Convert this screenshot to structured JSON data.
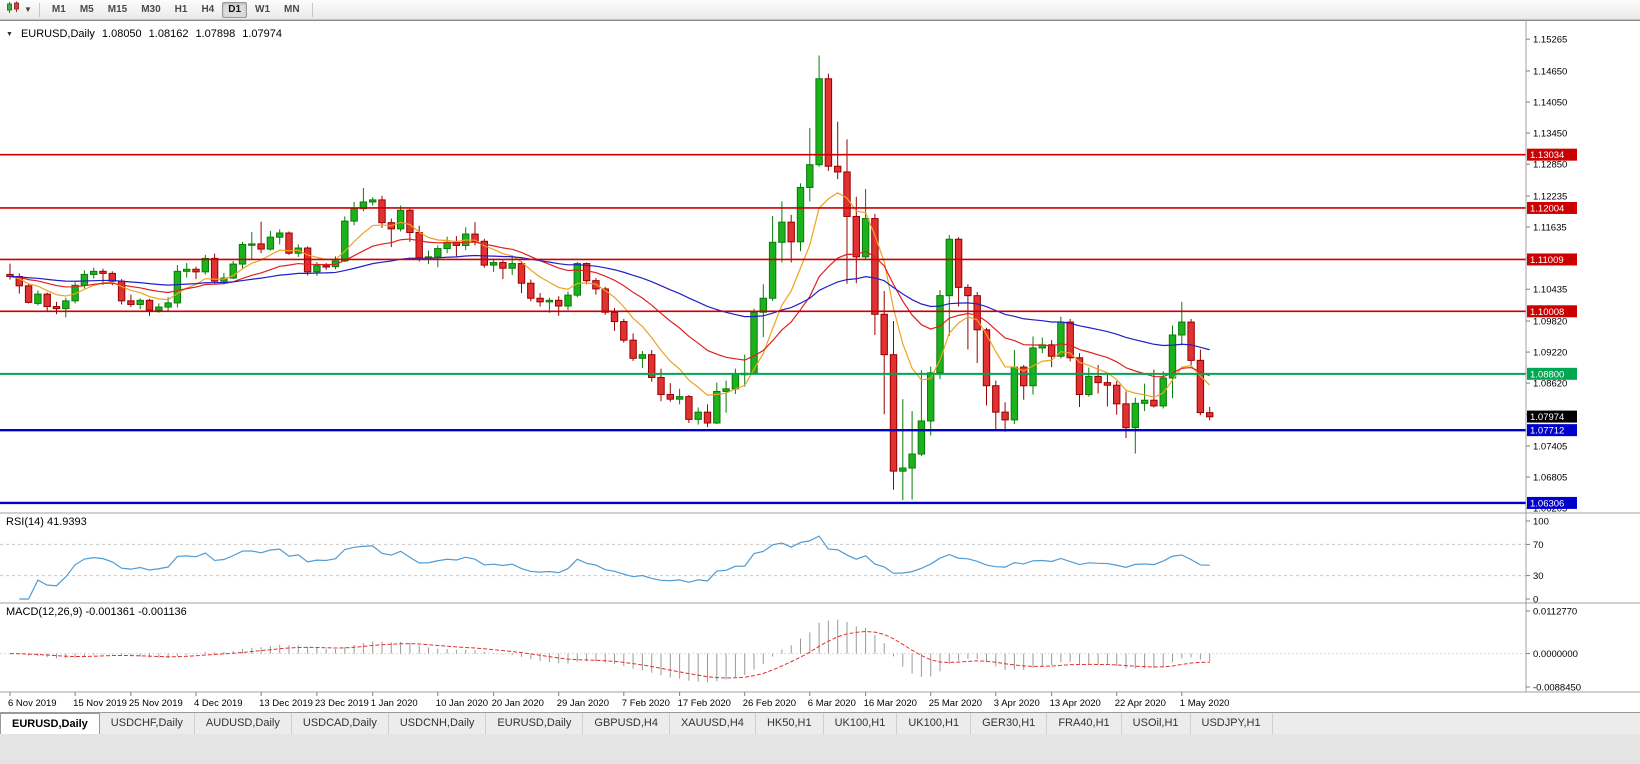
{
  "toolbar": {
    "timeframes": [
      "M1",
      "M5",
      "M15",
      "M30",
      "H1",
      "H4",
      "D1",
      "W1",
      "MN"
    ],
    "active_timeframe": "D1"
  },
  "chart": {
    "title": "EURUSD,Daily",
    "open": "1.08050",
    "high": "1.08162",
    "low": "1.07898",
    "close": "1.07974"
  },
  "rsi": {
    "label": "RSI(14) 41.9393",
    "ticks": [
      "100",
      "70",
      "30",
      "0"
    ],
    "levels": [
      70,
      30
    ],
    "color": "#4f9bd5"
  },
  "macd": {
    "label": "MACD(12,26,9) -0.001361 -0.001136",
    "ticks": [
      {
        "text": "0.0112770",
        "value": 0.011277
      },
      {
        "text": "0.0000000",
        "value": 0
      },
      {
        "text": "-0.0088450",
        "value": -0.008845
      }
    ],
    "histogram_color": "#9a9a9a",
    "signal_color": "#e03030",
    "scale": [
      -0.008845,
      0.011277
    ]
  },
  "price_axis": {
    "ticks": [
      "1.15265",
      "1.14650",
      "1.14050",
      "1.13450",
      "1.12850",
      "1.12235",
      "1.11635",
      "1.11035",
      "1.10435",
      "1.09820",
      "1.09220",
      "1.08620",
      "1.08020",
      "1.07405",
      "1.06805",
      "1.06205"
    ],
    "current_price": {
      "text": "1.07974",
      "value": 1.07974,
      "bg": "#000000",
      "fg": "#ffffff"
    }
  },
  "time_axis": {
    "labels": [
      {
        "text": "6 Nov 2019",
        "i": 0
      },
      {
        "text": "15 Nov 2019",
        "i": 7
      },
      {
        "text": "25 Nov 2019",
        "i": 13
      },
      {
        "text": "4 Dec 2019",
        "i": 20
      },
      {
        "text": "13 Dec 2019",
        "i": 27
      },
      {
        "text": "23 Dec 2019",
        "i": 33
      },
      {
        "text": "1 Jan 2020",
        "i": 39
      },
      {
        "text": "10 Jan 2020",
        "i": 46
      },
      {
        "text": "20 Jan 2020",
        "i": 52
      },
      {
        "text": "29 Jan 2020",
        "i": 59
      },
      {
        "text": "7 Feb 2020",
        "i": 66
      },
      {
        "text": "17 Feb 2020",
        "i": 72
      },
      {
        "text": "26 Feb 2020",
        "i": 79
      },
      {
        "text": "6 Mar 2020",
        "i": 86
      },
      {
        "text": "16 Mar 2020",
        "i": 92
      },
      {
        "text": "25 Mar 2020",
        "i": 99
      },
      {
        "text": "3 Apr 2020",
        "i": 106
      },
      {
        "text": "13 Apr 2020",
        "i": 112
      },
      {
        "text": "22 Apr 2020",
        "i": 119
      },
      {
        "text": "1 May 2020",
        "i": 126
      }
    ]
  },
  "tabs": {
    "active_index": 0,
    "items": [
      "EURUSD,Daily",
      "USDCHF,Daily",
      "AUDUSD,Daily",
      "USDCAD,Daily",
      "USDCNH,Daily",
      "EURUSD,Daily",
      "GBPUSD,H4",
      "XAUUSD,H4",
      "HK50,H1",
      "UK100,H1",
      "UK100,H1",
      "GER30,H1",
      "FRA40,H1",
      "USOil,H1",
      "USDJPY,H1"
    ]
  },
  "chart_data": {
    "type": "candlestick",
    "symbol": "EURUSD",
    "timeframe": "Daily",
    "price_range": [
      1.0615,
      1.155
    ],
    "colors": {
      "bull_fill": "#1cb21c",
      "bull_stroke": "#0a7a0a",
      "bear_fill": "#e03232",
      "bear_stroke": "#990000"
    },
    "moving_averages": [
      {
        "period": 8,
        "method": "ema",
        "color": "#efa120"
      },
      {
        "period": 21,
        "method": "ema",
        "color": "#e02020"
      },
      {
        "period": 55,
        "method": "ema",
        "color": "#2020c8"
      }
    ],
    "indicators": {
      "rsi_period": 14,
      "macd_params": [
        12,
        26,
        9
      ]
    },
    "horizontal_lines": [
      {
        "price": 1.13034,
        "label": "1.13034",
        "color": "#cc0000",
        "width": 1.6
      },
      {
        "price": 1.12004,
        "label": "1.12004",
        "color": "#cc0000",
        "width": 1.6
      },
      {
        "price": 1.11009,
        "label": "1.11009",
        "color": "#cc0000",
        "width": 1.6
      },
      {
        "price": 1.10008,
        "label": "1.10008",
        "color": "#cc0000",
        "width": 1.6
      },
      {
        "price": 1.088,
        "label": "1.08800",
        "color": "#00a651",
        "width": 2
      },
      {
        "price": 1.07712,
        "label": "1.07712",
        "color": "#0000cc",
        "width": 2.4
      },
      {
        "price": 1.06306,
        "label": "1.06306",
        "color": "#0000cc",
        "width": 2.4
      }
    ],
    "ohlc": [
      [
        1.1072,
        1.1093,
        1.1062,
        1.1068
      ],
      [
        1.1068,
        1.1074,
        1.1035,
        1.105
      ],
      [
        1.105,
        1.1054,
        1.1016,
        1.1018
      ],
      [
        1.1016,
        1.1041,
        1.1012,
        1.1034
      ],
      [
        1.1034,
        1.1037,
        1.1002,
        1.101
      ],
      [
        1.101,
        1.1019,
        1.0995,
        1.1006
      ],
      [
        1.1006,
        1.1027,
        1.0989,
        1.1021
      ],
      [
        1.1021,
        1.1057,
        1.1016,
        1.1051
      ],
      [
        1.1051,
        1.108,
        1.1045,
        1.1072
      ],
      [
        1.1072,
        1.1085,
        1.1064,
        1.1078
      ],
      [
        1.1078,
        1.1083,
        1.1052,
        1.1074
      ],
      [
        1.1074,
        1.1078,
        1.1051,
        1.1059
      ],
      [
        1.1059,
        1.1063,
        1.1014,
        1.1021
      ],
      [
        1.1021,
        1.1033,
        1.1009,
        1.1014
      ],
      [
        1.1014,
        1.1026,
        1.1005,
        1.1022
      ],
      [
        1.1022,
        1.1025,
        1.0992,
        1.1003
      ],
      [
        1.1003,
        1.1016,
        1.0998,
        1.1009
      ],
      [
        1.1009,
        1.1028,
        1.1001,
        1.1017
      ],
      [
        1.1017,
        1.109,
        1.1008,
        1.1078
      ],
      [
        1.1078,
        1.1094,
        1.1066,
        1.1082
      ],
      [
        1.1082,
        1.1087,
        1.1063,
        1.1077
      ],
      [
        1.1077,
        1.111,
        1.1072,
        1.1103
      ],
      [
        1.1103,
        1.1112,
        1.1054,
        1.1059
      ],
      [
        1.1059,
        1.1075,
        1.1053,
        1.1065
      ],
      [
        1.1065,
        1.1098,
        1.1063,
        1.1092
      ],
      [
        1.1092,
        1.1135,
        1.1082,
        1.113
      ],
      [
        1.113,
        1.1154,
        1.1102,
        1.1131
      ],
      [
        1.1131,
        1.1174,
        1.1113,
        1.1121
      ],
      [
        1.1121,
        1.1156,
        1.1118,
        1.1144
      ],
      [
        1.1144,
        1.1159,
        1.113,
        1.1152
      ],
      [
        1.1152,
        1.1155,
        1.111,
        1.1113
      ],
      [
        1.1113,
        1.113,
        1.1106,
        1.1123
      ],
      [
        1.1123,
        1.1126,
        1.107,
        1.1077
      ],
      [
        1.1077,
        1.1096,
        1.1069,
        1.1089
      ],
      [
        1.1089,
        1.1094,
        1.1081,
        1.1087
      ],
      [
        1.1087,
        1.1107,
        1.1082,
        1.1098
      ],
      [
        1.1098,
        1.1184,
        1.1096,
        1.1175
      ],
      [
        1.1175,
        1.1212,
        1.1167,
        1.1199
      ],
      [
        1.1199,
        1.1239,
        1.1194,
        1.1212
      ],
      [
        1.1212,
        1.1221,
        1.1205,
        1.1216
      ],
      [
        1.1216,
        1.1224,
        1.1162,
        1.1172
      ],
      [
        1.1172,
        1.118,
        1.1125,
        1.116
      ],
      [
        1.116,
        1.1205,
        1.1155,
        1.1196
      ],
      [
        1.1196,
        1.1199,
        1.1135,
        1.1153
      ],
      [
        1.1153,
        1.1166,
        1.1097,
        1.1104
      ],
      [
        1.1104,
        1.1118,
        1.1092,
        1.1106
      ],
      [
        1.1106,
        1.1128,
        1.1086,
        1.1122
      ],
      [
        1.1122,
        1.1145,
        1.1113,
        1.1134
      ],
      [
        1.1134,
        1.1146,
        1.1105,
        1.1128
      ],
      [
        1.1128,
        1.1163,
        1.1119,
        1.115
      ],
      [
        1.115,
        1.1173,
        1.1128,
        1.1136
      ],
      [
        1.1136,
        1.1141,
        1.1085,
        1.109
      ],
      [
        1.109,
        1.1102,
        1.1077,
        1.1095
      ],
      [
        1.1095,
        1.1099,
        1.1063,
        1.1084
      ],
      [
        1.1084,
        1.1109,
        1.1071,
        1.1093
      ],
      [
        1.1093,
        1.1098,
        1.1036,
        1.1055
      ],
      [
        1.1055,
        1.1062,
        1.102,
        1.1026
      ],
      [
        1.1026,
        1.1036,
        1.101,
        1.1019
      ],
      [
        1.1019,
        1.1027,
        1.0998,
        1.1022
      ],
      [
        1.1022,
        1.103,
        1.0992,
        1.1011
      ],
      [
        1.1011,
        1.1039,
        1.1003,
        1.1032
      ],
      [
        1.1032,
        1.1096,
        1.1028,
        1.1093
      ],
      [
        1.1093,
        1.1095,
        1.1053,
        1.106
      ],
      [
        1.106,
        1.1065,
        1.1033,
        1.1044
      ],
      [
        1.1044,
        1.1048,
        1.0994,
        1.0999
      ],
      [
        1.0999,
        1.1007,
        1.0963,
        1.0981
      ],
      [
        1.0981,
        1.0986,
        1.094,
        1.0945
      ],
      [
        1.0945,
        1.0958,
        1.0905,
        1.091
      ],
      [
        1.091,
        1.0924,
        1.0891,
        1.0917
      ],
      [
        1.0917,
        1.0926,
        1.0865,
        1.0873
      ],
      [
        1.0873,
        1.089,
        1.0827,
        1.084
      ],
      [
        1.084,
        1.0862,
        1.0826,
        1.0831
      ],
      [
        1.0831,
        1.0851,
        1.0821,
        1.0836
      ],
      [
        1.0836,
        1.0839,
        1.0785,
        1.0792
      ],
      [
        1.0792,
        1.0815,
        1.0782,
        1.0806
      ],
      [
        1.0806,
        1.0821,
        1.0777,
        1.0785
      ],
      [
        1.0785,
        1.0863,
        1.0783,
        1.0846
      ],
      [
        1.0846,
        1.0867,
        1.0805,
        1.0851
      ],
      [
        1.0851,
        1.089,
        1.0841,
        1.088
      ],
      [
        1.088,
        1.0917,
        1.0855,
        1.0881
      ],
      [
        1.0881,
        1.1006,
        1.0879,
        1.0999
      ],
      [
        1.0999,
        1.1053,
        1.0951,
        1.1026
      ],
      [
        1.1026,
        1.1185,
        1.1021,
        1.1134
      ],
      [
        1.1134,
        1.1213,
        1.1095,
        1.1173
      ],
      [
        1.1173,
        1.1187,
        1.1095,
        1.1135
      ],
      [
        1.1135,
        1.1248,
        1.1117,
        1.124
      ],
      [
        1.124,
        1.1355,
        1.1213,
        1.1284
      ],
      [
        1.1284,
        1.1495,
        1.128,
        1.145
      ],
      [
        1.145,
        1.146,
        1.1272,
        1.1281
      ],
      [
        1.1281,
        1.1367,
        1.1256,
        1.127
      ],
      [
        1.127,
        1.1333,
        1.1054,
        1.1184
      ],
      [
        1.1184,
        1.1222,
        1.1055,
        1.1106
      ],
      [
        1.1106,
        1.1237,
        1.11,
        1.118
      ],
      [
        1.118,
        1.1189,
        1.0955,
        1.0995
      ],
      [
        1.0995,
        1.104,
        1.0802,
        1.0917
      ],
      [
        1.0917,
        1.0982,
        1.0656,
        1.0692
      ],
      [
        1.0692,
        1.0831,
        1.0636,
        1.0698
      ],
      [
        1.0698,
        1.0808,
        1.0637,
        1.0725
      ],
      [
        1.0725,
        1.0887,
        1.0721,
        1.0789
      ],
      [
        1.0789,
        1.0894,
        1.0761,
        1.0882
      ],
      [
        1.0882,
        1.1042,
        1.087,
        1.1031
      ],
      [
        1.1031,
        1.1148,
        1.0953,
        1.114
      ],
      [
        1.114,
        1.1144,
        1.101,
        1.1047
      ],
      [
        1.1047,
        1.1053,
        1.0927,
        1.1031
      ],
      [
        1.1031,
        1.1038,
        1.0901,
        1.0965
      ],
      [
        1.0965,
        1.0969,
        1.0819,
        1.0857
      ],
      [
        1.0857,
        1.0867,
        1.0773,
        1.0806
      ],
      [
        1.0806,
        1.0825,
        1.0768,
        1.0791
      ],
      [
        1.0791,
        1.0926,
        1.0783,
        1.0893
      ],
      [
        1.0893,
        1.0897,
        1.083,
        1.0857
      ],
      [
        1.0857,
        1.0952,
        1.084,
        1.093
      ],
      [
        1.093,
        1.095,
        1.092,
        1.0936
      ],
      [
        1.0936,
        1.0945,
        1.0893,
        1.0914
      ],
      [
        1.0914,
        1.099,
        1.091,
        1.098
      ],
      [
        1.098,
        1.0986,
        1.0904,
        1.0911
      ],
      [
        1.0911,
        1.092,
        1.0816,
        1.084
      ],
      [
        1.084,
        1.0892,
        1.0836,
        1.0875
      ],
      [
        1.0875,
        1.0897,
        1.0842,
        1.0863
      ],
      [
        1.0863,
        1.088,
        1.0817,
        1.0858
      ],
      [
        1.0858,
        1.0866,
        1.0801,
        1.0822
      ],
      [
        1.0822,
        1.0846,
        1.0756,
        1.0776
      ],
      [
        1.0776,
        1.0834,
        1.0726,
        1.0823
      ],
      [
        1.0823,
        1.0861,
        1.0808,
        1.0829
      ],
      [
        1.0829,
        1.0888,
        1.0815,
        1.0818
      ],
      [
        1.0818,
        1.0885,
        1.0813,
        1.0872
      ],
      [
        1.0872,
        1.0973,
        1.0833,
        1.0955
      ],
      [
        1.0955,
        1.1019,
        1.0935,
        1.098
      ],
      [
        1.098,
        1.0986,
        1.0895,
        1.0906
      ],
      [
        1.0906,
        1.0927,
        1.08,
        1.0805
      ],
      [
        1.0805,
        1.0816,
        1.079,
        1.0797
      ]
    ]
  }
}
